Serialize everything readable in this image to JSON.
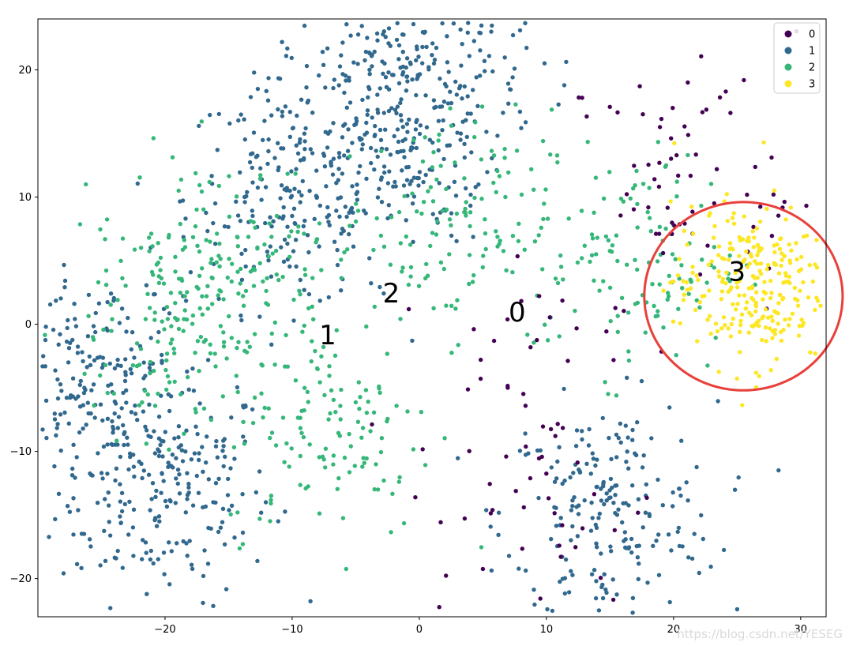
{
  "chart_data": {
    "type": "scatter",
    "title": "",
    "xlabel": "",
    "ylabel": "",
    "xlim": [
      -30,
      32
    ],
    "ylim": [
      -23,
      24
    ],
    "xticks": [
      -20,
      -10,
      0,
      10,
      20,
      30
    ],
    "yticks": [
      -20,
      -10,
      0,
      10,
      20
    ],
    "grid": false,
    "legend_placement": "top-right",
    "series": [
      {
        "name": "0",
        "color": "#440154",
        "n_points": 130,
        "centers": [
          [
            8,
            -2
          ],
          [
            23,
            11
          ],
          [
            10,
            -15
          ],
          [
            20,
            12
          ]
        ]
      },
      {
        "name": "1",
        "color": "#31688e",
        "n_points": 1300,
        "centers": [
          [
            -20,
            -13
          ],
          [
            -10,
            10
          ],
          [
            15,
            -15
          ],
          [
            -2,
            15
          ],
          [
            -25,
            -5
          ],
          [
            0,
            22
          ]
        ]
      },
      {
        "name": "2",
        "color": "#35b779",
        "n_points": 650,
        "centers": [
          [
            -20,
            0
          ],
          [
            2,
            8
          ],
          [
            17,
            5
          ],
          [
            -7,
            -8
          ],
          [
            -15,
            5
          ]
        ]
      },
      {
        "name": "3",
        "color": "#fde725",
        "n_points": 260,
        "centers": [
          [
            26,
            3
          ]
        ]
      }
    ],
    "annotations": [
      {
        "text": "0",
        "x": 7.7,
        "y": 0.8
      },
      {
        "text": "1",
        "x": -7.2,
        "y": -1.0
      },
      {
        "text": "2",
        "x": -2.2,
        "y": 2.3
      },
      {
        "text": "3",
        "x": 25.0,
        "y": 4.0
      }
    ],
    "highlight_circle": {
      "center": [
        25.5,
        2.2
      ],
      "radius_x": 7.8,
      "radius_y": 7.4,
      "color": "#e8403a"
    }
  },
  "watermark": "https://blog.csdn.net/YESEG"
}
